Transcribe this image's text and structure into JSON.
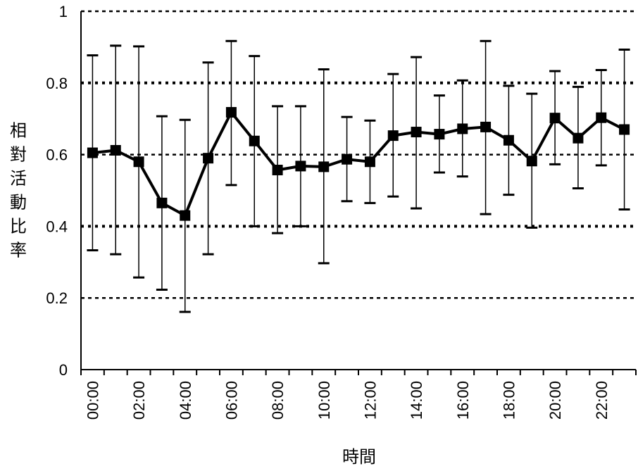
{
  "chart_data": {
    "type": "line",
    "title": "",
    "xlabel": "時間",
    "ylabel": "相對活動比率",
    "ylim": [
      0,
      1
    ],
    "yticks": [
      "0",
      "0.2",
      "0.4",
      "0.6",
      "0.8",
      "1"
    ],
    "xticks": [
      "00:00",
      "02:00",
      "04:00",
      "06:00",
      "08:00",
      "10:00",
      "12:00",
      "14:00",
      "16:00",
      "18:00",
      "20:00",
      "22:00"
    ],
    "grid": "horizontal dotted",
    "series": [
      {
        "x": [
          "00:00",
          "01:00",
          "02:00",
          "03:00",
          "04:00",
          "05:00",
          "06:00",
          "07:00",
          "08:00",
          "09:00",
          "10:00",
          "11:00",
          "12:00",
          "13:00",
          "14:00",
          "15:00",
          "16:00",
          "17:00",
          "18:00",
          "19:00",
          "20:00",
          "21:00",
          "22:00",
          "23:00"
        ],
        "values": [
          0.605,
          0.612,
          0.58,
          0.465,
          0.43,
          0.59,
          0.718,
          0.638,
          0.557,
          0.568,
          0.566,
          0.587,
          0.58,
          0.653,
          0.663,
          0.657,
          0.672,
          0.677,
          0.64,
          0.582,
          0.702,
          0.646,
          0.703,
          0.67
        ],
        "err_low": [
          0.333,
          0.322,
          0.257,
          0.223,
          0.161,
          0.322,
          0.515,
          0.4,
          0.381,
          0.4,
          0.297,
          0.47,
          0.465,
          0.483,
          0.45,
          0.55,
          0.539,
          0.434,
          0.488,
          0.396,
          0.573,
          0.506,
          0.57,
          0.447
        ],
        "err_high": [
          0.877,
          0.904,
          0.902,
          0.707,
          0.697,
          0.857,
          0.917,
          0.875,
          0.735,
          0.735,
          0.838,
          0.705,
          0.695,
          0.825,
          0.872,
          0.765,
          0.807,
          0.917,
          0.792,
          0.77,
          0.833,
          0.789,
          0.836,
          0.893
        ]
      }
    ]
  }
}
